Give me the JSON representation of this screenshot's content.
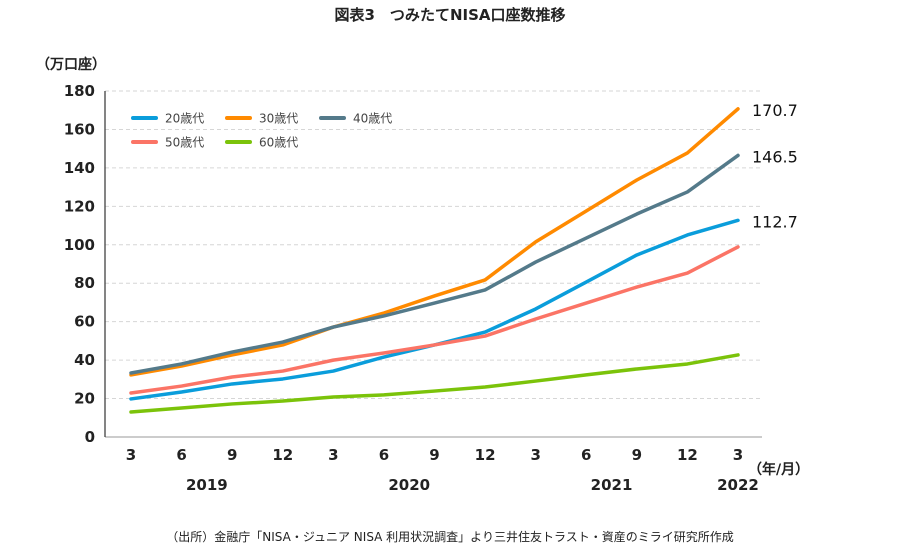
{
  "title": "図表3　つみたてNISA口座数推移",
  "source": "（出所）金融庁「NISA・ジュニア NISA 利用状況調査」より三井住友トラスト・資産のミライ研究所作成",
  "chart_data": {
    "type": "line",
    "ylabel": "（万口座）",
    "xlabel": "（年/月）",
    "ylim": [
      0,
      180
    ],
    "yticks": [
      0,
      20,
      40,
      60,
      80,
      100,
      120,
      140,
      160,
      180
    ],
    "grid": true,
    "legend_position": "top-left",
    "x": [
      "3",
      "6",
      "9",
      "12",
      "3",
      "6",
      "9",
      "12",
      "3",
      "6",
      "9",
      "12",
      "3"
    ],
    "years": [
      {
        "label": "2019",
        "start": 0,
        "end": 3
      },
      {
        "label": "2020",
        "start": 4,
        "end": 7
      },
      {
        "label": "2021",
        "start": 8,
        "end": 11
      },
      {
        "label": "2022",
        "start": 12,
        "end": 12
      }
    ],
    "series": [
      {
        "name": "20歳代",
        "color": "#0a9ddb",
        "values": [
          19.8,
          23.4,
          27.6,
          30.2,
          34.3,
          41.6,
          47.9,
          54.6,
          66.6,
          80.6,
          94.7,
          105.1,
          112.7
        ],
        "end_label": "112.7"
      },
      {
        "name": "30歳代",
        "color": "#ff8a00",
        "values": [
          32.3,
          36.9,
          42.7,
          47.9,
          57.2,
          64.5,
          73.4,
          81.7,
          101.5,
          117.6,
          133.7,
          147.8,
          170.7
        ],
        "end_label": "170.7"
      },
      {
        "name": "40歳代",
        "color": "#547a8a",
        "values": [
          33.3,
          38.0,
          44.2,
          49.4,
          57.2,
          63.0,
          69.7,
          76.5,
          91.0,
          103.5,
          116.0,
          127.5,
          146.5
        ],
        "end_label": "146.5"
      },
      {
        "name": "50歳代",
        "color": "#fb7466",
        "values": [
          22.9,
          26.5,
          31.2,
          34.3,
          40.0,
          43.7,
          47.9,
          52.5,
          61.4,
          69.7,
          78.0,
          85.3,
          98.9
        ]
      },
      {
        "name": "60歳代",
        "color": "#7bc30a",
        "values": [
          13.0,
          15.1,
          17.2,
          18.7,
          20.8,
          21.9,
          23.9,
          26.0,
          29.1,
          32.3,
          35.4,
          38.0,
          42.7
        ]
      }
    ]
  }
}
